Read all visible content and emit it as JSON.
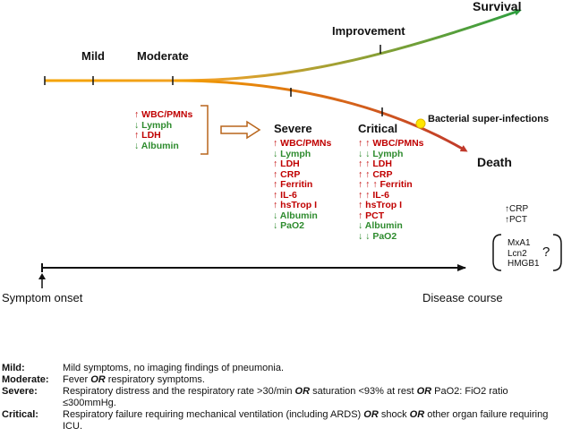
{
  "stages": {
    "mild": "Mild",
    "moderate": "Moderate",
    "improvement": "Improvement",
    "severe": "Severe",
    "critical": "Critical"
  },
  "outcomes": {
    "survival": "Survival",
    "death": "Death"
  },
  "bacterial_label": "Bacterial super-infections",
  "moderate_markers": [
    {
      "arrows": "↑",
      "dir": "up",
      "label": "WBC/PMNs"
    },
    {
      "arrows": "↓",
      "dir": "down",
      "label": "Lymph"
    },
    {
      "arrows": "↑",
      "dir": "up",
      "label": "LDH"
    },
    {
      "arrows": "↓",
      "dir": "down",
      "label": "Albumin"
    }
  ],
  "severe_markers": [
    {
      "arrows": "↑",
      "dir": "up",
      "label": "WBC/PMNs"
    },
    {
      "arrows": "↓",
      "dir": "down",
      "label": "Lymph"
    },
    {
      "arrows": "↑",
      "dir": "up",
      "label": "LDH"
    },
    {
      "arrows": "↑",
      "dir": "up",
      "label": "CRP"
    },
    {
      "arrows": "↑",
      "dir": "up",
      "label": "Ferritin"
    },
    {
      "arrows": "↑",
      "dir": "up",
      "label": "IL-6"
    },
    {
      "arrows": "↑",
      "dir": "up",
      "label": "hsTrop I"
    },
    {
      "arrows": "↓",
      "dir": "down",
      "label": "Albumin"
    },
    {
      "arrows": "↓",
      "dir": "down",
      "label": "PaO2"
    }
  ],
  "critical_markers": [
    {
      "arrows": "↑ ↑",
      "dir": "up",
      "label": "WBC/PMNs"
    },
    {
      "arrows": "↓ ↓",
      "dir": "down",
      "label": "Lymph"
    },
    {
      "arrows": "↑ ↑",
      "dir": "up",
      "label": "LDH"
    },
    {
      "arrows": "↑ ↑",
      "dir": "up",
      "label": "CRP"
    },
    {
      "arrows": "↑ ↑ ↑",
      "dir": "up",
      "label": "Ferritin"
    },
    {
      "arrows": "↑ ↑",
      "dir": "up",
      "label": "IL-6"
    },
    {
      "arrows": "↑",
      "dir": "up",
      "label": "hsTrop I"
    },
    {
      "arrows": "↑",
      "dir": "up",
      "label": "PCT"
    },
    {
      "arrows": "↓",
      "dir": "down",
      "label": "Albumin"
    },
    {
      "arrows": "↓ ↓",
      "dir": "down",
      "label": "PaO2"
    }
  ],
  "bacterial_markers": [
    {
      "arrows": "↑",
      "label": "CRP"
    },
    {
      "arrows": "↑",
      "label": "PCT"
    }
  ],
  "candidate_markers": [
    "MxA1",
    "Lcn2",
    "HMGB1"
  ],
  "question_mark": "?",
  "axis": {
    "start_label": "Symptom onset",
    "end_label": "Disease course"
  },
  "legend": [
    {
      "term": "Mild",
      "parts": [
        {
          "t": "Mild symptoms, no imaging findings of pneumonia."
        }
      ]
    },
    {
      "term": "Moderate",
      "parts": [
        {
          "t": "Fever "
        },
        {
          "t": "OR",
          "em": true
        },
        {
          "t": " respiratory symptoms."
        }
      ]
    },
    {
      "term": "Severe",
      "parts": [
        {
          "t": "Respiratory distress and the respiratory rate >30/min "
        },
        {
          "t": "OR",
          "em": true
        },
        {
          "t": " saturation <93% at rest "
        },
        {
          "t": "OR",
          "em": true
        },
        {
          "t": " PaO2: FiO2 ratio ≤300mmHg."
        }
      ]
    },
    {
      "term": "Critical",
      "parts": [
        {
          "t": "Respiratory failure requiring mechanical ventilation (including ARDS) "
        },
        {
          "t": "OR",
          "em": true
        },
        {
          "t": " shock "
        },
        {
          "t": "OR",
          "em": true
        },
        {
          "t": " other organ failure requiring ICU."
        }
      ]
    }
  ],
  "colors": {
    "start": "#f5a300",
    "survival_end": "#2e9e3f",
    "death_end": "#c0392b",
    "bracket": "#b8651b",
    "up": "#c00000",
    "down": "#2e8b2e",
    "bacterial_dot": "#ffe600"
  }
}
